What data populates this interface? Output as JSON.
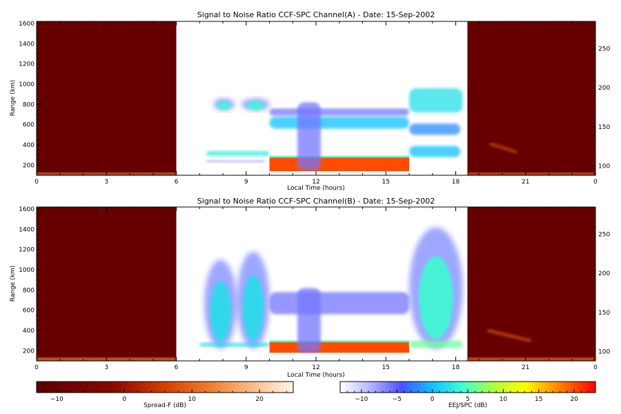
{
  "chart_data": [
    {
      "type": "heatmap",
      "title": "Signal to Noise Ratio CCF-SPC Channel(A) - Date: 15-Sep-2002",
      "xlabel": "Local Time (hours)",
      "ylabel": "Range (km)",
      "x_ticks": [
        "0",
        "3",
        "6",
        "9",
        "12",
        "15",
        "18",
        "21",
        "0"
      ],
      "y_ticks": [
        200,
        400,
        600,
        800,
        1000,
        1200,
        1400,
        1600
      ],
      "y_right_ticks": [
        100,
        150,
        200,
        250
      ],
      "ylim": [
        100,
        1620
      ],
      "y_right_lim": [
        88,
        285
      ],
      "x_range_hours": [
        0,
        24
      ],
      "spread_f_blocks_hours": [
        [
          0,
          6
        ],
        [
          18.5,
          24
        ]
      ],
      "eej_window_hours": [
        6,
        18.5
      ],
      "features": [
        {
          "kind": "spread-f-floor",
          "t0": 0,
          "t1": 6,
          "r0": 100,
          "r1": 125,
          "db": 14
        },
        {
          "kind": "spread-f-floor",
          "t0": 18.5,
          "t1": 24,
          "r0": 100,
          "r1": 125,
          "db": 12
        },
        {
          "kind": "spread-f-streak",
          "t0": 19.5,
          "t1": 20.6,
          "r0": 410,
          "r1": 330,
          "db": 8
        },
        {
          "kind": "eej-strong",
          "t0": 10,
          "t1": 16,
          "r0": 140,
          "r1": 280,
          "db": 20
        },
        {
          "kind": "eej-blob",
          "t0": 7.6,
          "t1": 8.5,
          "r0": 740,
          "r1": 860,
          "db": 4
        },
        {
          "kind": "eej-blob",
          "t0": 8.8,
          "t1": 10,
          "r0": 740,
          "r1": 860,
          "db": 4
        },
        {
          "kind": "eej-band",
          "t0": 7.3,
          "t1": 10,
          "r0": 290,
          "r1": 340,
          "db": 3
        },
        {
          "kind": "eej-band",
          "t0": 10,
          "t1": 16,
          "r0": 560,
          "r1": 680,
          "db": 0
        },
        {
          "kind": "eej-band",
          "t0": 10,
          "t1": 16,
          "r0": 690,
          "r1": 760,
          "db": -6
        },
        {
          "kind": "eej-band",
          "t0": 11.2,
          "t1": 12.2,
          "r0": 150,
          "r1": 820,
          "db": -6
        },
        {
          "kind": "eej-band",
          "t0": 16,
          "t1": 18.3,
          "r0": 720,
          "r1": 960,
          "db": 2
        },
        {
          "kind": "eej-band",
          "t0": 16,
          "t1": 18.2,
          "r0": 500,
          "r1": 610,
          "db": -2
        },
        {
          "kind": "eej-band",
          "t0": 16,
          "t1": 18.2,
          "r0": 280,
          "r1": 390,
          "db": 0
        },
        {
          "kind": "eej-band",
          "t0": 7.3,
          "t1": 9.8,
          "r0": 225,
          "r1": 250,
          "db": -8
        }
      ]
    },
    {
      "type": "heatmap",
      "title": "Signal to Noise Ratio CCF-SPC Channel(B) - Date: 15-Sep-2002",
      "xlabel": "Local Time (hours)",
      "ylabel": "Range (km)",
      "x_ticks": [
        "0",
        "3",
        "6",
        "9",
        "12",
        "15",
        "18",
        "21",
        "0"
      ],
      "y_ticks": [
        200,
        400,
        600,
        800,
        1000,
        1200,
        1400,
        1600
      ],
      "y_right_ticks": [
        100,
        150,
        200,
        250
      ],
      "ylim": [
        100,
        1620
      ],
      "y_right_lim": [
        88,
        285
      ],
      "x_range_hours": [
        0,
        24
      ],
      "spread_f_blocks_hours": [
        [
          0,
          6
        ],
        [
          18.5,
          24
        ]
      ],
      "eej_window_hours": [
        6,
        18.5
      ],
      "features": [
        {
          "kind": "spread-f-floor",
          "t0": 0,
          "t1": 6,
          "r0": 100,
          "r1": 130,
          "db": 14
        },
        {
          "kind": "spread-f-floor",
          "t0": 18.5,
          "t1": 24,
          "r0": 100,
          "r1": 130,
          "db": 12
        },
        {
          "kind": "spread-f-streak",
          "t0": 19.4,
          "t1": 21.2,
          "r0": 400,
          "r1": 300,
          "db": 9
        },
        {
          "kind": "eej-strong",
          "t0": 10,
          "t1": 16,
          "r0": 180,
          "r1": 290,
          "db": 20
        },
        {
          "kind": "eej-blob",
          "t0": 7.2,
          "t1": 8.6,
          "r0": 220,
          "r1": 1100,
          "db": 2
        },
        {
          "kind": "eej-blob",
          "t0": 8.6,
          "t1": 10,
          "r0": 220,
          "r1": 1180,
          "db": 2
        },
        {
          "kind": "eej-band",
          "t0": 7.0,
          "t1": 10,
          "r0": 240,
          "r1": 280,
          "db": 2
        },
        {
          "kind": "eej-band",
          "t0": 10,
          "t1": 16,
          "r0": 560,
          "r1": 780,
          "db": -6
        },
        {
          "kind": "eej-band",
          "t0": 11.2,
          "t1": 12.2,
          "r0": 180,
          "r1": 820,
          "db": -6
        },
        {
          "kind": "eej-blob",
          "t0": 16,
          "t1": 18.3,
          "r0": 220,
          "r1": 1420,
          "db": 4
        },
        {
          "kind": "eej-band",
          "t0": 16,
          "t1": 18.3,
          "r0": 230,
          "r1": 300,
          "db": 6
        }
      ]
    }
  ],
  "colorbars": [
    {
      "label": "Spread-F (dB)",
      "ticks": [
        -10,
        0,
        10,
        20
      ],
      "range": [
        -13,
        25
      ],
      "palette": "heat"
    },
    {
      "label": "EEJ/SPC (dB)",
      "ticks": [
        -10,
        -5,
        0,
        5,
        10,
        15,
        20
      ],
      "range": [
        -13,
        23
      ],
      "palette": "jet"
    }
  ],
  "colors": {
    "spread_f_background": "#660000",
    "eej_background": "#ffffff",
    "axis": "#000000"
  }
}
